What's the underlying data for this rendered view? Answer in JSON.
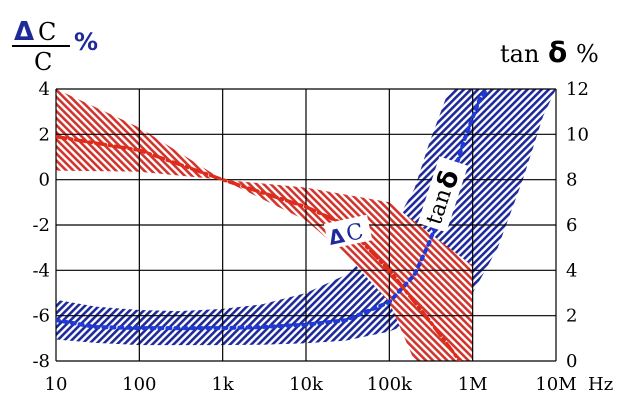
{
  "chart_data": {
    "type": "area",
    "xscale": "log",
    "x_ticks": [
      10,
      100,
      1000,
      10000,
      100000,
      1000000,
      10000000
    ],
    "x_tick_labels": [
      "10",
      "100",
      "1k",
      "10k",
      "100k",
      "1M",
      "10M"
    ],
    "x_unit": "Hz",
    "y_left": {
      "label_symbol": "Δ",
      "label_numer": "C",
      "label_denom": "C",
      "label_unit": "%",
      "ticks": [
        4,
        2,
        0,
        -2,
        -4,
        -6,
        -8
      ],
      "ylim": [
        -8,
        4
      ]
    },
    "y_right": {
      "label_text": "tan",
      "label_symbol": "δ",
      "label_unit": "%",
      "ticks": [
        12,
        10,
        8,
        6,
        4,
        2,
        0
      ],
      "ylim": [
        0,
        12
      ]
    },
    "grid": true,
    "series": [
      {
        "axis": "right",
        "color": "#1f2a9a",
        "label_text": "tan",
        "label_symbol": "δ",
        "center": [
          [
            10,
            1.8
          ],
          [
            30,
            1.5
          ],
          [
            100,
            1.45
          ],
          [
            300,
            1.45
          ],
          [
            1000,
            1.45
          ],
          [
            3000,
            1.5
          ],
          [
            10000,
            1.6
          ],
          [
            30000,
            1.8
          ],
          [
            100000,
            2.6
          ],
          [
            200000,
            3.8
          ],
          [
            300000,
            5.2
          ],
          [
            500000,
            7.4
          ],
          [
            800000,
            9.8
          ],
          [
            1200000,
            11.5
          ],
          [
            1500000,
            12
          ]
        ],
        "upper": [
          [
            10,
            2.7
          ],
          [
            30,
            2.4
          ],
          [
            100,
            2.25
          ],
          [
            300,
            2.2
          ],
          [
            1000,
            2.3
          ],
          [
            3000,
            2.5
          ],
          [
            10000,
            3.0
          ],
          [
            30000,
            3.8
          ],
          [
            100000,
            5.6
          ],
          [
            200000,
            7.6
          ],
          [
            300000,
            9.6
          ],
          [
            500000,
            11.8
          ],
          [
            600000,
            12
          ],
          [
            10000000,
            12
          ]
        ],
        "lower": [
          [
            10,
            0.95
          ],
          [
            30,
            0.8
          ],
          [
            100,
            0.7
          ],
          [
            300,
            0.7
          ],
          [
            1000,
            0.7
          ],
          [
            3000,
            0.72
          ],
          [
            10000,
            0.78
          ],
          [
            30000,
            0.9
          ],
          [
            100000,
            1.3
          ],
          [
            300000,
            2.0
          ],
          [
            1000000,
            3.0
          ],
          [
            2000000,
            5.0
          ],
          [
            4000000,
            8.0
          ],
          [
            7000000,
            10.8
          ],
          [
            10000000,
            12
          ]
        ]
      },
      {
        "axis": "left",
        "color": "#c62828",
        "label_symbol": "Δ",
        "label_text": "C",
        "center": [
          [
            10,
            1.9
          ],
          [
            100,
            1.3
          ],
          [
            1000,
            0
          ],
          [
            10000,
            -1.2
          ],
          [
            30000,
            -2.0
          ],
          [
            100000,
            -4.0
          ],
          [
            300000,
            -6.2
          ],
          [
            700000,
            -8
          ]
        ],
        "upper": [
          [
            10,
            4
          ],
          [
            100,
            2.3
          ],
          [
            1000,
            0
          ],
          [
            10000,
            -0.35
          ],
          [
            100000,
            -1.0
          ],
          [
            1000000,
            -3.8
          ],
          [
            1000000,
            -8
          ]
        ],
        "lower": [
          [
            10,
            0.4
          ],
          [
            100,
            0.35
          ],
          [
            1000,
            0
          ],
          [
            10000,
            -1.8
          ],
          [
            30000,
            -3.3
          ],
          [
            100000,
            -5.4
          ],
          [
            200000,
            -8
          ]
        ]
      }
    ]
  }
}
